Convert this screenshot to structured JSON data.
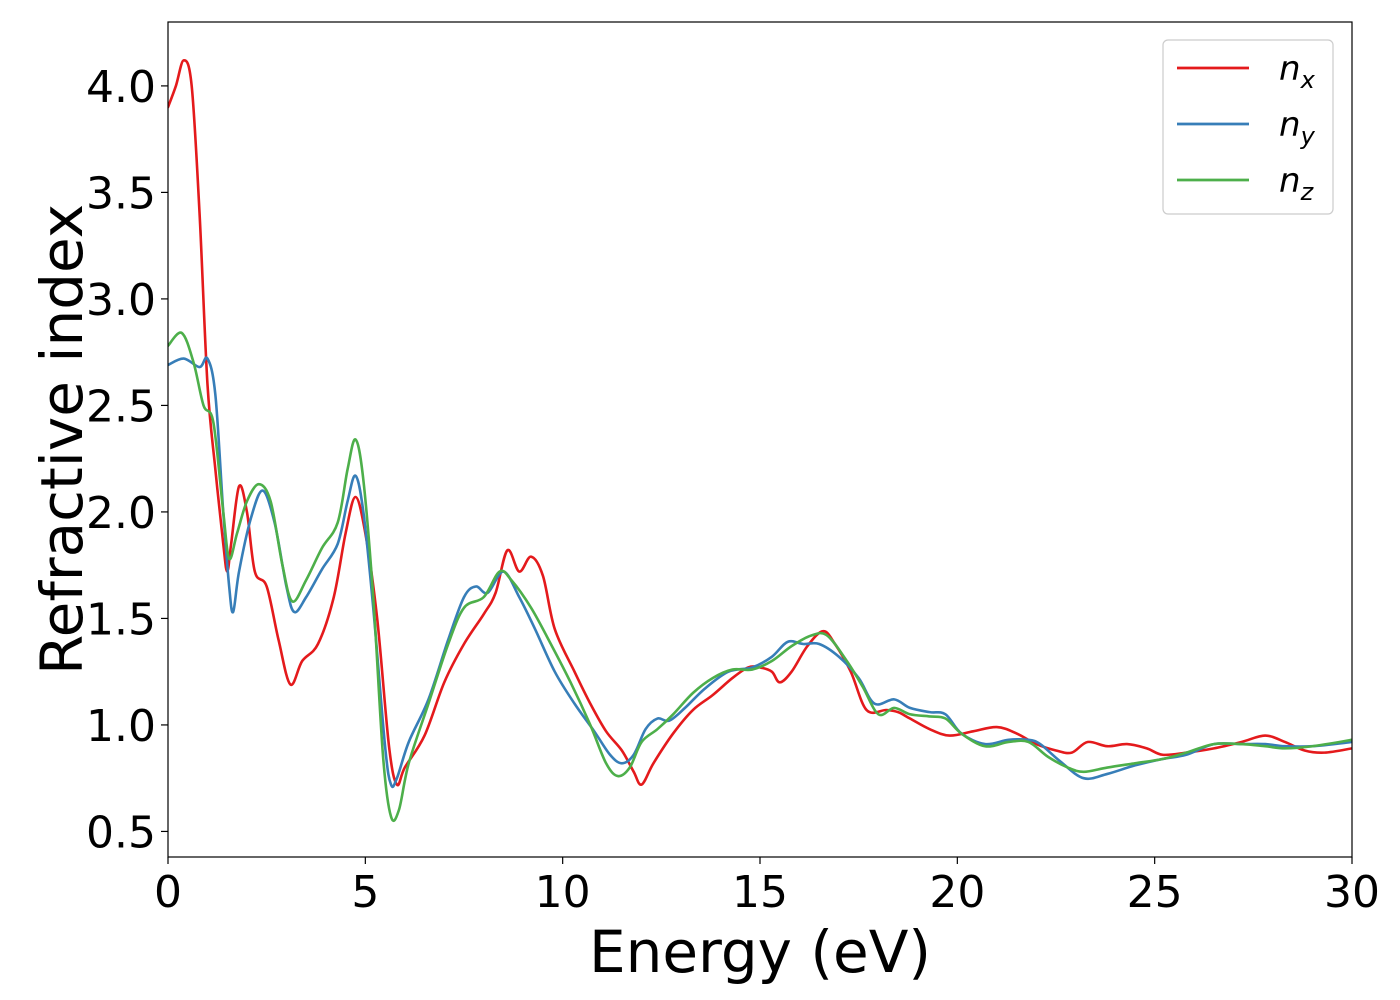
{
  "chart_data": {
    "type": "line",
    "title": "",
    "xlabel": "Energy (eV)",
    "ylabel": "Refractive index",
    "xlim": [
      0,
      30
    ],
    "ylim": [
      0.38,
      4.3
    ],
    "xticks": [
      0,
      5,
      10,
      15,
      20,
      25,
      30
    ],
    "yticks": [
      0.5,
      1.0,
      1.5,
      2.0,
      2.5,
      3.0,
      3.5,
      4.0
    ],
    "grid": false,
    "legend_position": "top-right",
    "series": [
      {
        "name": "n",
        "subscript": "x",
        "color": "#e41a1c",
        "points": [
          [
            0,
            3.9
          ],
          [
            0.2,
            4.0
          ],
          [
            0.4,
            4.12
          ],
          [
            0.6,
            4.0
          ],
          [
            0.8,
            3.4
          ],
          [
            1.0,
            2.6
          ],
          [
            1.2,
            2.2
          ],
          [
            1.4,
            1.85
          ],
          [
            1.5,
            1.72
          ],
          [
            1.6,
            1.85
          ],
          [
            1.8,
            2.12
          ],
          [
            2.0,
            2.0
          ],
          [
            2.2,
            1.72
          ],
          [
            2.5,
            1.65
          ],
          [
            2.8,
            1.4
          ],
          [
            3.1,
            1.19
          ],
          [
            3.4,
            1.3
          ],
          [
            3.8,
            1.38
          ],
          [
            4.2,
            1.6
          ],
          [
            4.5,
            1.9
          ],
          [
            4.75,
            2.07
          ],
          [
            5.0,
            1.9
          ],
          [
            5.3,
            1.5
          ],
          [
            5.6,
            0.9
          ],
          [
            5.8,
            0.72
          ],
          [
            6.0,
            0.8
          ],
          [
            6.5,
            0.95
          ],
          [
            7.0,
            1.2
          ],
          [
            7.5,
            1.38
          ],
          [
            8.0,
            1.52
          ],
          [
            8.3,
            1.62
          ],
          [
            8.6,
            1.82
          ],
          [
            8.9,
            1.72
          ],
          [
            9.2,
            1.79
          ],
          [
            9.5,
            1.7
          ],
          [
            9.8,
            1.45
          ],
          [
            10.3,
            1.25
          ],
          [
            10.7,
            1.1
          ],
          [
            11.1,
            0.97
          ],
          [
            11.5,
            0.88
          ],
          [
            11.8,
            0.78
          ],
          [
            12.0,
            0.72
          ],
          [
            12.3,
            0.82
          ],
          [
            12.8,
            0.96
          ],
          [
            13.3,
            1.07
          ],
          [
            13.8,
            1.14
          ],
          [
            14.3,
            1.22
          ],
          [
            14.7,
            1.27
          ],
          [
            15.0,
            1.27
          ],
          [
            15.3,
            1.25
          ],
          [
            15.5,
            1.2
          ],
          [
            15.8,
            1.25
          ],
          [
            16.2,
            1.37
          ],
          [
            16.6,
            1.44
          ],
          [
            16.9,
            1.38
          ],
          [
            17.3,
            1.25
          ],
          [
            17.7,
            1.07
          ],
          [
            18.2,
            1.07
          ],
          [
            18.5,
            1.06
          ],
          [
            18.8,
            1.03
          ],
          [
            19.3,
            0.98
          ],
          [
            19.8,
            0.95
          ],
          [
            20.4,
            0.97
          ],
          [
            21.0,
            0.99
          ],
          [
            21.5,
            0.96
          ],
          [
            22.0,
            0.91
          ],
          [
            22.5,
            0.88
          ],
          [
            22.9,
            0.87
          ],
          [
            23.3,
            0.92
          ],
          [
            23.8,
            0.9
          ],
          [
            24.3,
            0.91
          ],
          [
            24.8,
            0.89
          ],
          [
            25.2,
            0.86
          ],
          [
            25.8,
            0.87
          ],
          [
            26.5,
            0.89
          ],
          [
            27.2,
            0.92
          ],
          [
            27.8,
            0.95
          ],
          [
            28.3,
            0.92
          ],
          [
            28.8,
            0.88
          ],
          [
            29.3,
            0.87
          ],
          [
            30,
            0.89
          ]
        ]
      },
      {
        "name": "n",
        "subscript": "y",
        "color": "#377eb8",
        "points": [
          [
            0,
            2.69
          ],
          [
            0.4,
            2.72
          ],
          [
            0.8,
            2.68
          ],
          [
            1.0,
            2.72
          ],
          [
            1.2,
            2.55
          ],
          [
            1.4,
            2.0
          ],
          [
            1.55,
            1.65
          ],
          [
            1.65,
            1.53
          ],
          [
            1.8,
            1.72
          ],
          [
            2.1,
            1.97
          ],
          [
            2.4,
            2.1
          ],
          [
            2.7,
            1.95
          ],
          [
            3.0,
            1.65
          ],
          [
            3.2,
            1.53
          ],
          [
            3.5,
            1.6
          ],
          [
            3.9,
            1.73
          ],
          [
            4.3,
            1.85
          ],
          [
            4.55,
            2.05
          ],
          [
            4.75,
            2.17
          ],
          [
            4.95,
            2.0
          ],
          [
            5.2,
            1.55
          ],
          [
            5.5,
            0.9
          ],
          [
            5.65,
            0.72
          ],
          [
            5.8,
            0.75
          ],
          [
            6.1,
            0.92
          ],
          [
            6.6,
            1.12
          ],
          [
            7.1,
            1.4
          ],
          [
            7.5,
            1.6
          ],
          [
            7.8,
            1.65
          ],
          [
            8.1,
            1.62
          ],
          [
            8.5,
            1.72
          ],
          [
            8.9,
            1.6
          ],
          [
            9.3,
            1.45
          ],
          [
            9.8,
            1.25
          ],
          [
            10.3,
            1.1
          ],
          [
            10.8,
            0.97
          ],
          [
            11.2,
            0.86
          ],
          [
            11.5,
            0.82
          ],
          [
            11.8,
            0.86
          ],
          [
            12.1,
            0.98
          ],
          [
            12.4,
            1.03
          ],
          [
            12.7,
            1.02
          ],
          [
            13.1,
            1.08
          ],
          [
            13.6,
            1.17
          ],
          [
            14.2,
            1.25
          ],
          [
            14.8,
            1.27
          ],
          [
            15.3,
            1.32
          ],
          [
            15.7,
            1.39
          ],
          [
            16.1,
            1.38
          ],
          [
            16.5,
            1.38
          ],
          [
            17.0,
            1.32
          ],
          [
            17.5,
            1.22
          ],
          [
            17.9,
            1.1
          ],
          [
            18.4,
            1.12
          ],
          [
            18.8,
            1.08
          ],
          [
            19.3,
            1.06
          ],
          [
            19.7,
            1.05
          ],
          [
            20.1,
            0.96
          ],
          [
            20.7,
            0.91
          ],
          [
            21.3,
            0.93
          ],
          [
            21.8,
            0.93
          ],
          [
            22.1,
            0.91
          ],
          [
            22.6,
            0.83
          ],
          [
            23.2,
            0.75
          ],
          [
            23.8,
            0.77
          ],
          [
            24.5,
            0.81
          ],
          [
            25.2,
            0.84
          ],
          [
            25.8,
            0.86
          ],
          [
            26.5,
            0.91
          ],
          [
            27.2,
            0.91
          ],
          [
            27.8,
            0.91
          ],
          [
            28.3,
            0.9
          ],
          [
            29.0,
            0.9
          ],
          [
            30,
            0.92
          ]
        ]
      },
      {
        "name": "n",
        "subscript": "z",
        "color": "#4daf4a",
        "points": [
          [
            0,
            2.78
          ],
          [
            0.35,
            2.84
          ],
          [
            0.65,
            2.7
          ],
          [
            0.9,
            2.5
          ],
          [
            1.15,
            2.42
          ],
          [
            1.4,
            2.0
          ],
          [
            1.55,
            1.78
          ],
          [
            1.75,
            1.9
          ],
          [
            2.0,
            2.05
          ],
          [
            2.3,
            2.13
          ],
          [
            2.6,
            2.05
          ],
          [
            2.9,
            1.75
          ],
          [
            3.15,
            1.58
          ],
          [
            3.5,
            1.68
          ],
          [
            3.9,
            1.83
          ],
          [
            4.3,
            1.95
          ],
          [
            4.55,
            2.2
          ],
          [
            4.75,
            2.34
          ],
          [
            4.95,
            2.15
          ],
          [
            5.2,
            1.6
          ],
          [
            5.45,
            0.85
          ],
          [
            5.65,
            0.57
          ],
          [
            5.85,
            0.6
          ],
          [
            6.1,
            0.82
          ],
          [
            6.6,
            1.1
          ],
          [
            7.1,
            1.38
          ],
          [
            7.5,
            1.55
          ],
          [
            8.0,
            1.6
          ],
          [
            8.4,
            1.72
          ],
          [
            8.7,
            1.68
          ],
          [
            9.2,
            1.55
          ],
          [
            9.7,
            1.38
          ],
          [
            10.2,
            1.2
          ],
          [
            10.7,
            1.0
          ],
          [
            11.1,
            0.82
          ],
          [
            11.4,
            0.76
          ],
          [
            11.7,
            0.8
          ],
          [
            12.0,
            0.92
          ],
          [
            12.4,
            0.98
          ],
          [
            12.8,
            1.05
          ],
          [
            13.3,
            1.15
          ],
          [
            13.8,
            1.22
          ],
          [
            14.3,
            1.26
          ],
          [
            14.8,
            1.26
          ],
          [
            15.3,
            1.3
          ],
          [
            15.8,
            1.37
          ],
          [
            16.3,
            1.42
          ],
          [
            16.7,
            1.42
          ],
          [
            17.2,
            1.3
          ],
          [
            17.6,
            1.18
          ],
          [
            18.0,
            1.05
          ],
          [
            18.4,
            1.08
          ],
          [
            18.8,
            1.05
          ],
          [
            19.3,
            1.04
          ],
          [
            19.7,
            1.03
          ],
          [
            20.1,
            0.96
          ],
          [
            20.7,
            0.9
          ],
          [
            21.3,
            0.92
          ],
          [
            21.8,
            0.92
          ],
          [
            22.3,
            0.85
          ],
          [
            22.8,
            0.8
          ],
          [
            23.2,
            0.78
          ],
          [
            23.8,
            0.8
          ],
          [
            24.5,
            0.82
          ],
          [
            25.2,
            0.84
          ],
          [
            25.8,
            0.87
          ],
          [
            26.5,
            0.91
          ],
          [
            27.2,
            0.91
          ],
          [
            27.8,
            0.9
          ],
          [
            28.3,
            0.89
          ],
          [
            29.0,
            0.9
          ],
          [
            30,
            0.93
          ]
        ]
      }
    ]
  }
}
